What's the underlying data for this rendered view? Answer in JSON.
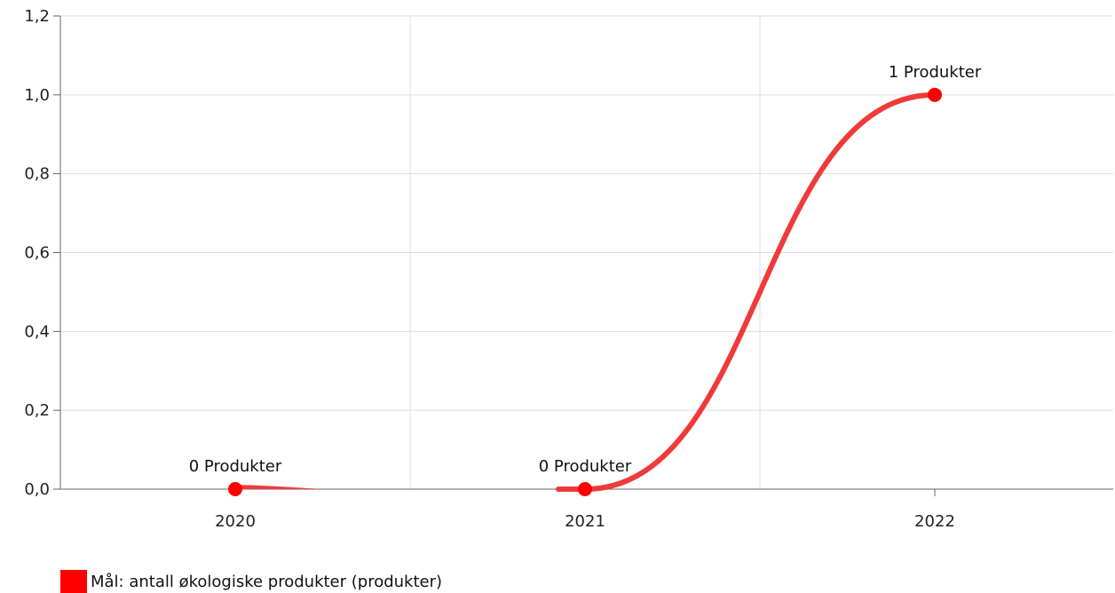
{
  "chart_data": {
    "type": "line",
    "categories": [
      "2020",
      "2021",
      "2022"
    ],
    "series": [
      {
        "name": "Mål: antall økologiske produkter (produkter)",
        "values": [
          0,
          0,
          1
        ],
        "data_labels": [
          "0 Produkter",
          "0 Produkter",
          "1 Produkter"
        ],
        "color": "#ff0000"
      }
    ],
    "ylim": [
      0,
      1.2
    ],
    "yticks": [
      0,
      0.2,
      0.4,
      0.6,
      0.8,
      1.0,
      1.2
    ],
    "ytick_labels": [
      "0,0",
      "0,2",
      "0,4",
      "0,6",
      "0,8",
      "1,0",
      "1,2"
    ],
    "line_color": "#f03a3a",
    "grid": true,
    "legend_position": "bottom-left",
    "title": "",
    "xlabel": "",
    "ylabel": ""
  }
}
